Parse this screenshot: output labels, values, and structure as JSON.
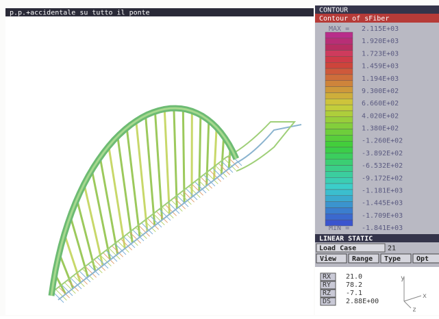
{
  "viewport": {
    "title": "p.p.+accidentale su tutto il ponte"
  },
  "panel": {
    "header": "CONTOUR",
    "subtitle": "Contour of sFiber",
    "max_label": "MAX =",
    "min_label": "MIN =",
    "legend": [
      "2.115E+03",
      "1.920E+03",
      "1.723E+03",
      "1.459E+03",
      "1.194E+03",
      "9.300E+02",
      "6.660E+02",
      "4.020E+02",
      "1.380E+02",
      "-1.260E+02",
      "-3.892E+02",
      "-6.532E+02",
      "-9.172E+02",
      "-1.181E+03",
      "-1.445E+03",
      "-1.709E+03",
      "-1.841E+03"
    ],
    "analysis": "LINEAR STATIC",
    "load_case_label": "Load Case",
    "load_case": "21",
    "buttons": [
      "View",
      "Range",
      "Type",
      "Opt"
    ],
    "rotation": [
      [
        "RX",
        "21.0"
      ],
      [
        "RY",
        "78.2"
      ],
      [
        "RZ",
        "-7.1"
      ],
      [
        "DS",
        "2.88E+00"
      ]
    ],
    "axes": [
      "y",
      "x",
      "z"
    ]
  }
}
